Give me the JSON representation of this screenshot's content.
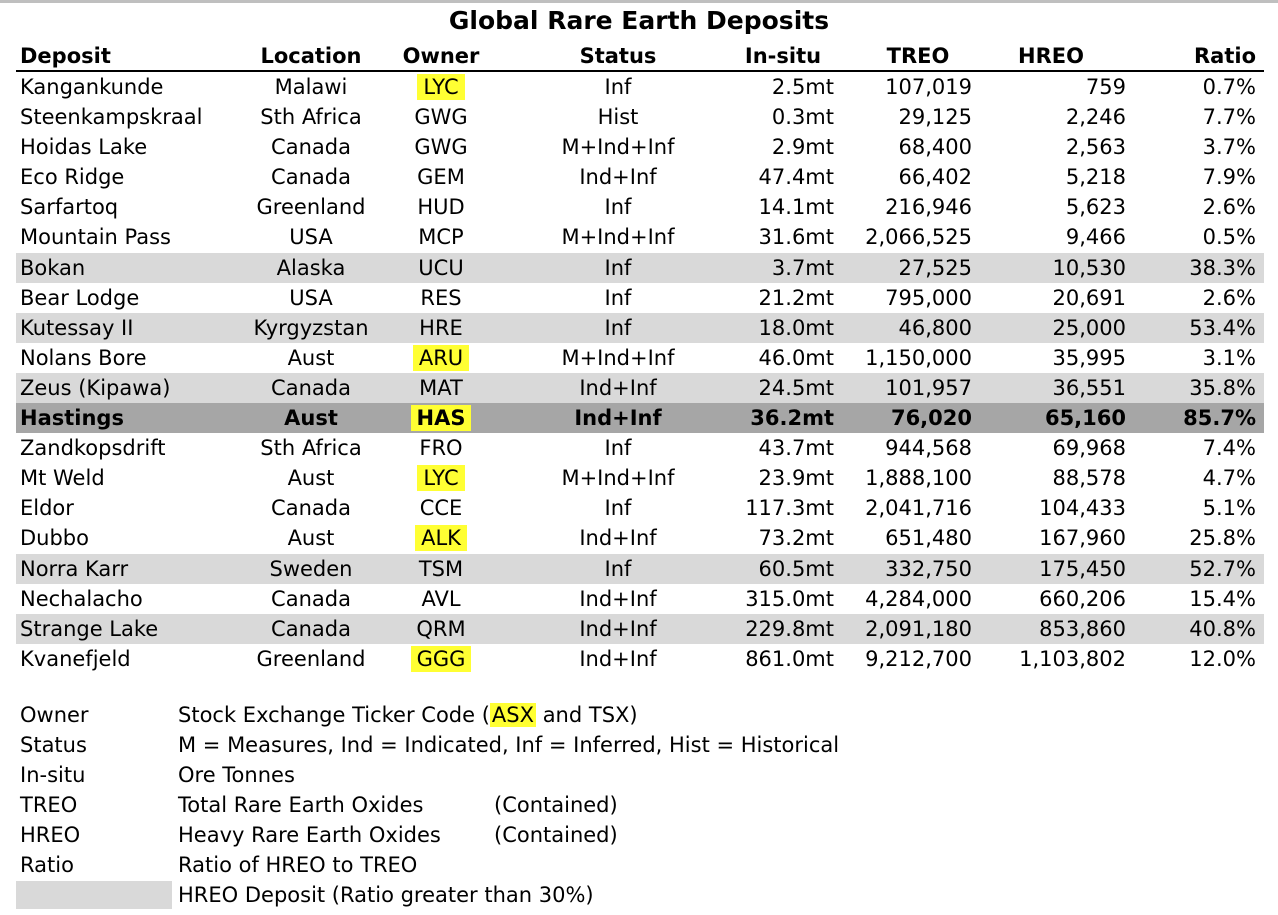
{
  "title": "Global Rare Earth Deposits",
  "columns": {
    "deposit": "Deposit",
    "location": "Location",
    "owner": "Owner",
    "status": "Status",
    "insitu": "In-situ",
    "treo": "TREO",
    "hreo": "HREO",
    "ratio": "Ratio"
  },
  "rows": [
    {
      "deposit": "Kangankunde",
      "location": "Malawi",
      "owner": "LYC",
      "status": "Inf",
      "insitu": "2.5mt",
      "treo": "107,019",
      "hreo": "759",
      "ratio": "0.7%",
      "owner_highlight": true,
      "hreo_deposit": false,
      "focus": false
    },
    {
      "deposit": "Steenkampskraal",
      "location": "Sth Africa",
      "owner": "GWG",
      "status": "Hist",
      "insitu": "0.3mt",
      "treo": "29,125",
      "hreo": "2,246",
      "ratio": "7.7%",
      "owner_highlight": false,
      "hreo_deposit": false,
      "focus": false
    },
    {
      "deposit": "Hoidas Lake",
      "location": "Canada",
      "owner": "GWG",
      "status": "M+Ind+Inf",
      "insitu": "2.9mt",
      "treo": "68,400",
      "hreo": "2,563",
      "ratio": "3.7%",
      "owner_highlight": false,
      "hreo_deposit": false,
      "focus": false
    },
    {
      "deposit": "Eco Ridge",
      "location": "Canada",
      "owner": "GEM",
      "status": "Ind+Inf",
      "insitu": "47.4mt",
      "treo": "66,402",
      "hreo": "5,218",
      "ratio": "7.9%",
      "owner_highlight": false,
      "hreo_deposit": false,
      "focus": false
    },
    {
      "deposit": "Sarfartoq",
      "location": "Greenland",
      "owner": "HUD",
      "status": "Inf",
      "insitu": "14.1mt",
      "treo": "216,946",
      "hreo": "5,623",
      "ratio": "2.6%",
      "owner_highlight": false,
      "hreo_deposit": false,
      "focus": false
    },
    {
      "deposit": "Mountain Pass",
      "location": "USA",
      "owner": "MCP",
      "status": "M+Ind+Inf",
      "insitu": "31.6mt",
      "treo": "2,066,525",
      "hreo": "9,466",
      "ratio": "0.5%",
      "owner_highlight": false,
      "hreo_deposit": false,
      "focus": false
    },
    {
      "deposit": "Bokan",
      "location": "Alaska",
      "owner": "UCU",
      "status": "Inf",
      "insitu": "3.7mt",
      "treo": "27,525",
      "hreo": "10,530",
      "ratio": "38.3%",
      "owner_highlight": false,
      "hreo_deposit": true,
      "focus": false
    },
    {
      "deposit": "Bear Lodge",
      "location": "USA",
      "owner": "RES",
      "status": "Inf",
      "insitu": "21.2mt",
      "treo": "795,000",
      "hreo": "20,691",
      "ratio": "2.6%",
      "owner_highlight": false,
      "hreo_deposit": false,
      "focus": false
    },
    {
      "deposit": "Kutessay II",
      "location": "Kyrgyzstan",
      "owner": "HRE",
      "status": "Inf",
      "insitu": "18.0mt",
      "treo": "46,800",
      "hreo": "25,000",
      "ratio": "53.4%",
      "owner_highlight": false,
      "hreo_deposit": true,
      "focus": false
    },
    {
      "deposit": "Nolans Bore",
      "location": "Aust",
      "owner": "ARU",
      "status": "M+Ind+Inf",
      "insitu": "46.0mt",
      "treo": "1,150,000",
      "hreo": "35,995",
      "ratio": "3.1%",
      "owner_highlight": true,
      "hreo_deposit": false,
      "focus": false
    },
    {
      "deposit": "Zeus (Kipawa)",
      "location": "Canada",
      "owner": "MAT",
      "status": "Ind+Inf",
      "insitu": "24.5mt",
      "treo": "101,957",
      "hreo": "36,551",
      "ratio": "35.8%",
      "owner_highlight": false,
      "hreo_deposit": true,
      "focus": false
    },
    {
      "deposit": "Hastings",
      "location": "Aust",
      "owner": "HAS",
      "status": "Ind+Inf",
      "insitu": "36.2mt",
      "treo": "76,020",
      "hreo": "65,160",
      "ratio": "85.7%",
      "owner_highlight": true,
      "hreo_deposit": true,
      "focus": true
    },
    {
      "deposit": "Zandkopsdrift",
      "location": "Sth Africa",
      "owner": "FRO",
      "status": "Inf",
      "insitu": "43.7mt",
      "treo": "944,568",
      "hreo": "69,968",
      "ratio": "7.4%",
      "owner_highlight": false,
      "hreo_deposit": false,
      "focus": false
    },
    {
      "deposit": "Mt Weld",
      "location": "Aust",
      "owner": "LYC",
      "status": "M+Ind+Inf",
      "insitu": "23.9mt",
      "treo": "1,888,100",
      "hreo": "88,578",
      "ratio": "4.7%",
      "owner_highlight": true,
      "hreo_deposit": false,
      "focus": false
    },
    {
      "deposit": "Eldor",
      "location": "Canada",
      "owner": "CCE",
      "status": "Inf",
      "insitu": "117.3mt",
      "treo": "2,041,716",
      "hreo": "104,433",
      "ratio": "5.1%",
      "owner_highlight": false,
      "hreo_deposit": false,
      "focus": false
    },
    {
      "deposit": "Dubbo",
      "location": "Aust",
      "owner": "ALK",
      "status": "Ind+Inf",
      "insitu": "73.2mt",
      "treo": "651,480",
      "hreo": "167,960",
      "ratio": "25.8%",
      "owner_highlight": true,
      "hreo_deposit": false,
      "focus": false
    },
    {
      "deposit": "Norra Karr",
      "location": "Sweden",
      "owner": "TSM",
      "status": "Inf",
      "insitu": "60.5mt",
      "treo": "332,750",
      "hreo": "175,450",
      "ratio": "52.7%",
      "owner_highlight": false,
      "hreo_deposit": true,
      "focus": false
    },
    {
      "deposit": "Nechalacho",
      "location": "Canada",
      "owner": "AVL",
      "status": "Ind+Inf",
      "insitu": "315.0mt",
      "treo": "4,284,000",
      "hreo": "660,206",
      "ratio": "15.4%",
      "owner_highlight": false,
      "hreo_deposit": false,
      "focus": false
    },
    {
      "deposit": "Strange Lake",
      "location": "Canada",
      "owner": "QRM",
      "status": "Ind+Inf",
      "insitu": "229.8mt",
      "treo": "2,091,180",
      "hreo": "853,860",
      "ratio": "40.8%",
      "owner_highlight": false,
      "hreo_deposit": true,
      "focus": false
    },
    {
      "deposit": "Kvanefjeld",
      "location": "Greenland",
      "owner": "GGG",
      "status": "Ind+Inf",
      "insitu": "861.0mt",
      "treo": "9,212,700",
      "hreo": "1,103,802",
      "ratio": "12.0%",
      "owner_highlight": true,
      "hreo_deposit": false,
      "focus": false
    }
  ],
  "legend": {
    "owner_term": "Owner",
    "owner_desc_pre": "Stock Exchange Ticker Code (",
    "owner_desc_asx": "ASX",
    "owner_desc_post": " and TSX)",
    "status_term": "Status",
    "status_desc": "M = Measures, Ind = Indicated, Inf = Inferred, Hist = Historical",
    "insitu_term": "In-situ",
    "insitu_desc": "Ore Tonnes",
    "treo_term": "TREO",
    "treo_desc": "Total Rare Earth Oxides",
    "treo_note": "(Contained)",
    "hreo_term": "HREO",
    "hreo_desc": "Heavy Rare Earth Oxides",
    "hreo_note": "(Contained)",
    "ratio_term": "Ratio",
    "ratio_desc": "Ratio of HREO to TREO",
    "swatch_desc": "HREO Deposit (Ratio greater than 30%)"
  },
  "colors": {
    "highlight": "#ffff33",
    "hreo_row": "#d9d9d9",
    "focus_row": "#a6a6a6"
  }
}
